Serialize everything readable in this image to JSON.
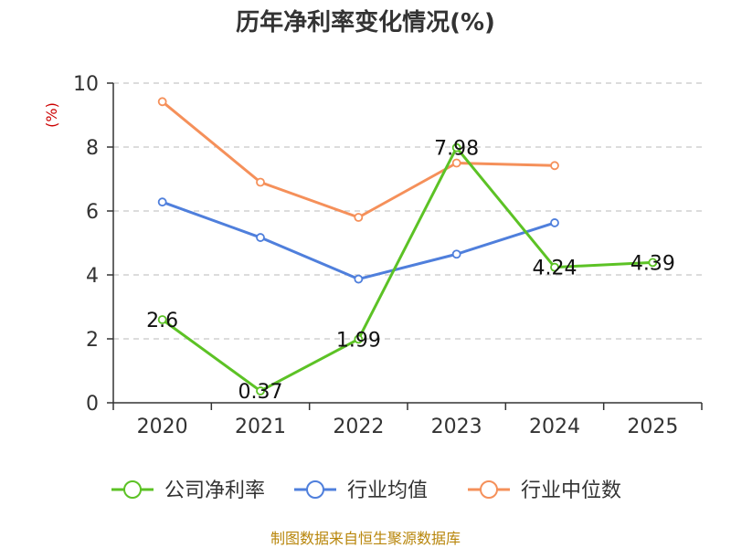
{
  "chart_data": {
    "type": "line",
    "title": "历年净利率变化情况(%)",
    "ylabel": "(%)",
    "categories": [
      "2020",
      "2021",
      "2022",
      "2023",
      "2024",
      "2025"
    ],
    "ylim": [
      0,
      10
    ],
    "yticks": [
      "0",
      "2",
      "4",
      "6",
      "8",
      "10"
    ],
    "grid": true,
    "legend_position": "bottom",
    "series": [
      {
        "name": "公司净利率",
        "color": "#5cc225",
        "values": [
          2.6,
          0.37,
          1.99,
          7.98,
          4.24,
          4.39
        ],
        "labels": [
          "2.6",
          "0.37",
          "1.99",
          "7.98",
          "4.24",
          "4.39"
        ]
      },
      {
        "name": "行业均值",
        "color": "#4f7fdc",
        "values": [
          6.28,
          5.17,
          3.87,
          4.65,
          5.63,
          null
        ]
      },
      {
        "name": "行业中位数",
        "color": "#f5905a",
        "values": [
          9.42,
          6.9,
          5.8,
          7.5,
          7.42,
          null
        ]
      }
    ]
  },
  "source_text": "制图数据来自恒生聚源数据库"
}
